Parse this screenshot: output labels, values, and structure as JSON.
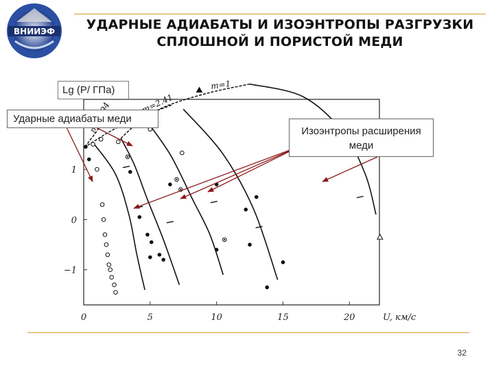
{
  "header": {
    "logo_text": "ВНИИЭФ",
    "title_line1": "УДАРНЫЕ АДИАБАТЫ И ИЗОЭНТРОПЫ РАЗГРУЗКИ",
    "title_line2": "СПЛОШНОЙ И ПОРИСТОЙ МЕДИ"
  },
  "annotations": {
    "ylabel": "Lg (P/ ГПа)",
    "shock_adiabats": "Ударные адиабаты меди",
    "isentropes_line1": "Изоэнтропы расширения",
    "isentropes_line2": "меди"
  },
  "footer": {
    "page_number": "32"
  },
  "colors": {
    "accent_line": "#c9a227",
    "arrow": "#8b1a1a",
    "curve": "#111111"
  },
  "chart_data": {
    "type": "line",
    "title": "",
    "xlabel": "U, км/с",
    "ylabel": "Lg (P/ ГПа)",
    "xlim": [
      0,
      22
    ],
    "ylim": [
      -1.7,
      2.6
    ],
    "x_ticks": [
      "0",
      "5",
      "10",
      "15",
      "20"
    ],
    "y_ticks": [
      "2",
      "1",
      "0",
      "−1"
    ],
    "x_tick_values": [
      0,
      5,
      10,
      15,
      20
    ],
    "y_tick_values": [
      2,
      1,
      0,
      -1
    ],
    "shock_adiabats": [
      {
        "name": "m=1",
        "points": [
          [
            2.8,
            1.62
          ],
          [
            4.5,
            2.02
          ],
          [
            6.5,
            2.29
          ],
          [
            9.5,
            2.53
          ],
          [
            12.5,
            2.7
          ]
        ]
      },
      {
        "name": "m=2.41",
        "points": [
          [
            0.3,
            1.48
          ],
          [
            1.5,
            1.68
          ],
          [
            2.5,
            1.83
          ],
          [
            4.0,
            2.02
          ],
          [
            5.2,
            2.14
          ],
          [
            6.6,
            2.28
          ]
        ]
      },
      {
        "name": "m=2.94",
        "points": [
          [
            0.1,
            1.45
          ],
          [
            0.7,
            1.66
          ],
          [
            1.3,
            1.88
          ],
          [
            1.8,
            2.03
          ]
        ]
      }
    ],
    "isentropes": [
      {
        "name": "m=1",
        "points": [
          [
            12.5,
            2.7
          ],
          [
            16.5,
            2.45
          ],
          [
            19.5,
            1.75
          ],
          [
            21.2,
            0.9
          ],
          [
            22.0,
            0.1
          ]
        ]
      },
      {
        "name": "isentrope-2",
        "points": [
          [
            7.5,
            2.2
          ],
          [
            10.5,
            1.3
          ],
          [
            12.8,
            0.2
          ],
          [
            14.6,
            -1.2
          ]
        ]
      },
      {
        "name": "isentrope-3",
        "points": [
          [
            4.5,
            2.05
          ],
          [
            6.5,
            1.3
          ],
          [
            8.2,
            0.4
          ],
          [
            9.5,
            -0.3
          ],
          [
            10.5,
            -1.1
          ]
        ]
      },
      {
        "name": "isentrope-4",
        "points": [
          [
            2.8,
            1.62
          ],
          [
            3.8,
            1.1
          ],
          [
            4.8,
            0.4
          ],
          [
            6.0,
            -0.4
          ],
          [
            7.2,
            -1.3
          ]
        ]
      },
      {
        "name": "isentrope-5",
        "points": [
          [
            0.8,
            1.5
          ],
          [
            2.4,
            0.9
          ],
          [
            3.4,
            0.1
          ],
          [
            4.0,
            -0.7
          ],
          [
            4.6,
            -1.4
          ]
        ]
      }
    ],
    "markers_open": [
      [
        0.7,
        1.5
      ],
      [
        1.3,
        1.6
      ],
      [
        1.0,
        1.0
      ],
      [
        1.4,
        0.3
      ],
      [
        1.5,
        0.0
      ],
      [
        1.6,
        -0.3
      ],
      [
        1.7,
        -0.5
      ],
      [
        1.8,
        -0.7
      ],
      [
        1.9,
        -0.9
      ],
      [
        2.0,
        -1.0
      ],
      [
        2.1,
        -1.15
      ],
      [
        2.3,
        -1.3
      ],
      [
        2.4,
        -1.45
      ],
      [
        2.6,
        1.55
      ],
      [
        3.1,
        1.95
      ],
      [
        5.0,
        1.8
      ],
      [
        7.4,
        1.33
      ]
    ],
    "markers_filled": [
      [
        0.15,
        1.45
      ],
      [
        0.4,
        1.2
      ],
      [
        4.2,
        0.05
      ],
      [
        4.8,
        -0.3
      ],
      [
        5.1,
        -0.45
      ],
      [
        5.7,
        -0.7
      ],
      [
        5.0,
        -0.75
      ],
      [
        6.0,
        -0.8
      ],
      [
        3.5,
        0.95
      ],
      [
        6.5,
        0.7
      ],
      [
        10.0,
        0.7
      ],
      [
        12.2,
        0.2
      ],
      [
        12.5,
        -0.5
      ],
      [
        10.0,
        -0.6
      ],
      [
        15.0,
        -0.85
      ],
      [
        13.8,
        -1.35
      ],
      [
        13.0,
        0.45
      ]
    ],
    "markers_half": [
      [
        3.3,
        1.25
      ],
      [
        7.0,
        0.8
      ],
      [
        7.3,
        0.6
      ],
      [
        10.6,
        -0.4
      ]
    ],
    "markers_triangle": [
      [
        8.7,
        2.58
      ],
      [
        22.3,
        -0.35
      ]
    ],
    "tick_marks": [
      [
        3.2,
        1.05
      ],
      [
        4.2,
        0.25
      ],
      [
        6.5,
        -0.05
      ],
      [
        9.8,
        0.35
      ],
      [
        13.2,
        -0.15
      ],
      [
        20.8,
        0.45
      ]
    ]
  }
}
